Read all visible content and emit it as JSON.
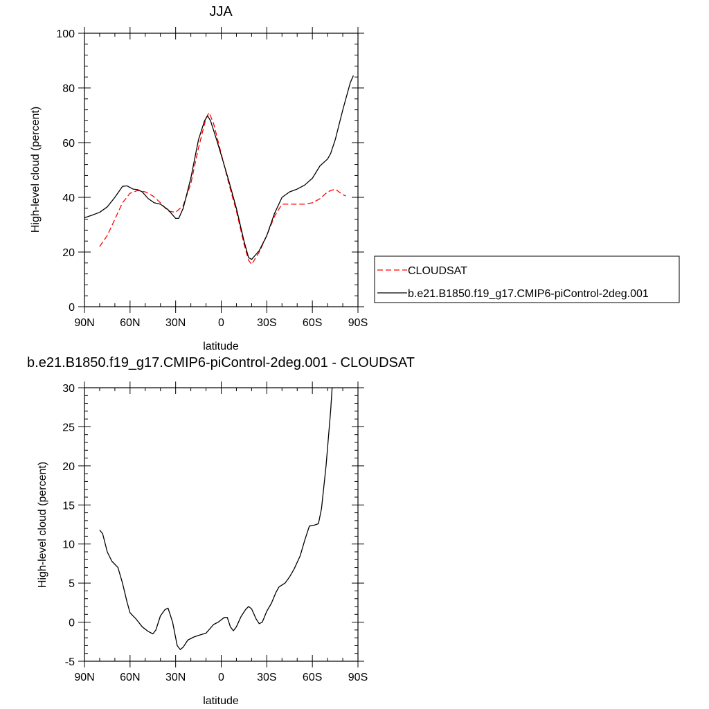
{
  "chart_data": [
    {
      "type": "line",
      "title": "JJA",
      "xlabel": "latitude",
      "ylabel": "High-level cloud (percent)",
      "xlim": [
        90,
        -90
      ],
      "ylim": [
        0,
        100
      ],
      "x_ticks": [
        90,
        60,
        30,
        0,
        -30,
        -60,
        -90
      ],
      "x_tick_labels": [
        "90N",
        "60N",
        "30N",
        "0",
        "30S",
        "60S",
        "90S"
      ],
      "y_ticks": [
        0,
        20,
        40,
        60,
        80,
        100
      ],
      "y_tick_labels": [
        "0",
        "20",
        "40",
        "60",
        "80",
        "100"
      ],
      "grid": false,
      "legend_position": "right",
      "series": [
        {
          "name": "CLOUDSAT",
          "color": "#ff0000",
          "dash": "dashed",
          "points": [
            [
              80,
              22
            ],
            [
              75,
              26
            ],
            [
              70,
              32
            ],
            [
              65,
              38
            ],
            [
              60,
              41.5
            ],
            [
              55,
              42.5
            ],
            [
              50,
              42
            ],
            [
              45,
              40.5
            ],
            [
              40,
              38
            ],
            [
              35,
              35
            ],
            [
              30,
              34.5
            ],
            [
              25,
              37
            ],
            [
              20,
              45
            ],
            [
              15,
              58
            ],
            [
              10,
              69
            ],
            [
              8,
              71
            ],
            [
              5,
              67
            ],
            [
              0,
              56
            ],
            [
              -5,
              45
            ],
            [
              -10,
              35
            ],
            [
              -15,
              23
            ],
            [
              -18,
              17
            ],
            [
              -20,
              15.5
            ],
            [
              -25,
              20
            ],
            [
              -30,
              26
            ],
            [
              -35,
              33
            ],
            [
              -40,
              37.5
            ],
            [
              -45,
              37.5
            ],
            [
              -50,
              37.5
            ],
            [
              -55,
              37.5
            ],
            [
              -60,
              38
            ],
            [
              -65,
              39.5
            ],
            [
              -70,
              42
            ],
            [
              -75,
              43
            ],
            [
              -80,
              41
            ],
            [
              -82,
              40.5
            ]
          ]
        },
        {
          "name": "b.e21.B1850.f19_g17.CMIP6-piControl-2deg.001",
          "color": "#000000",
          "dash": "solid",
          "points": [
            [
              90,
              32.5
            ],
            [
              85,
              33.5
            ],
            [
              80,
              34.5
            ],
            [
              75,
              36.5
            ],
            [
              70,
              40
            ],
            [
              65,
              44
            ],
            [
              62,
              44.2
            ],
            [
              58,
              43
            ],
            [
              55,
              42.8
            ],
            [
              52,
              42
            ],
            [
              48,
              39.5
            ],
            [
              44,
              38
            ],
            [
              40,
              37.5
            ],
            [
              35,
              35.5
            ],
            [
              30,
              32.3
            ],
            [
              28,
              32.3
            ],
            [
              25,
              36
            ],
            [
              20,
              47
            ],
            [
              15,
              61
            ],
            [
              11,
              68
            ],
            [
              9,
              69.8
            ],
            [
              7,
              68
            ],
            [
              3,
              61
            ],
            [
              0,
              55.5
            ],
            [
              -5,
              46
            ],
            [
              -10,
              36
            ],
            [
              -15,
              24
            ],
            [
              -18,
              18
            ],
            [
              -20,
              17.3
            ],
            [
              -25,
              20.5
            ],
            [
              -30,
              26
            ],
            [
              -35,
              34
            ],
            [
              -40,
              40
            ],
            [
              -45,
              42
            ],
            [
              -50,
              43
            ],
            [
              -55,
              44.5
            ],
            [
              -60,
              47
            ],
            [
              -65,
              51.5
            ],
            [
              -70,
              54
            ],
            [
              -72,
              56
            ],
            [
              -75,
              61
            ],
            [
              -80,
              72
            ],
            [
              -85,
              82
            ],
            [
              -87,
              84.5
            ]
          ]
        }
      ]
    },
    {
      "type": "line",
      "title": "b.e21.B1850.f19_g17.CMIP6-piControl-2deg.001 - CLOUDSAT",
      "xlabel": "latitude",
      "ylabel": "High-level cloud (percent)",
      "xlim": [
        90,
        -90
      ],
      "ylim": [
        -5,
        30
      ],
      "x_ticks": [
        90,
        60,
        30,
        0,
        -30,
        -60,
        -90
      ],
      "x_tick_labels": [
        "90N",
        "60N",
        "30N",
        "0",
        "30S",
        "60S",
        "90S"
      ],
      "y_ticks": [
        -5,
        0,
        5,
        10,
        15,
        20,
        25,
        30
      ],
      "y_tick_labels": [
        "-5",
        "0",
        "5",
        "10",
        "15",
        "20",
        "25",
        "30"
      ],
      "grid": false,
      "series": [
        {
          "color": "#000000",
          "dash": "solid",
          "points": [
            [
              80,
              11.8
            ],
            [
              78,
              11.3
            ],
            [
              75,
              9
            ],
            [
              72,
              7.8
            ],
            [
              68,
              7
            ],
            [
              65,
              5
            ],
            [
              62,
              2.6
            ],
            [
              60,
              1.2
            ],
            [
              56,
              0.4
            ],
            [
              52,
              -0.6
            ],
            [
              48,
              -1.2
            ],
            [
              45,
              -1.5
            ],
            [
              43,
              -1
            ],
            [
              40,
              0.8
            ],
            [
              37,
              1.6
            ],
            [
              35,
              1.8
            ],
            [
              32,
              0
            ],
            [
              29,
              -3
            ],
            [
              27,
              -3.5
            ],
            [
              25,
              -3.2
            ],
            [
              22,
              -2.3
            ],
            [
              18,
              -1.9
            ],
            [
              15,
              -1.7
            ],
            [
              10,
              -1.4
            ],
            [
              5,
              -0.3
            ],
            [
              2,
              0
            ],
            [
              -2,
              0.6
            ],
            [
              -4,
              0.6
            ],
            [
              -6,
              -0.6
            ],
            [
              -8,
              -1.1
            ],
            [
              -10,
              -0.6
            ],
            [
              -13,
              0.7
            ],
            [
              -16,
              1.6
            ],
            [
              -18,
              2
            ],
            [
              -20,
              1.7
            ],
            [
              -23,
              0.4
            ],
            [
              -25,
              -0.2
            ],
            [
              -27,
              0
            ],
            [
              -30,
              1.4
            ],
            [
              -33,
              2.4
            ],
            [
              -36,
              3.8
            ],
            [
              -38,
              4.5
            ],
            [
              -42,
              5
            ],
            [
              -45,
              5.8
            ],
            [
              -48,
              6.8
            ],
            [
              -52,
              8.5
            ],
            [
              -55,
              10.5
            ],
            [
              -58,
              12.3
            ],
            [
              -61,
              12.4
            ],
            [
              -64,
              12.6
            ],
            [
              -66,
              14.5
            ],
            [
              -69,
              20
            ],
            [
              -72,
              27
            ],
            [
              -73,
              30
            ]
          ]
        }
      ]
    }
  ]
}
